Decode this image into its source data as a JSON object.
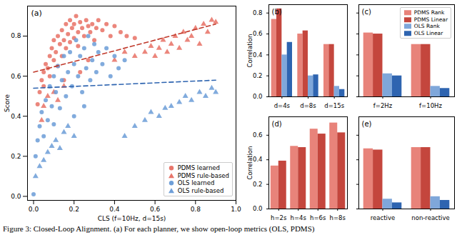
{
  "caption": "Figure 3: Closed-Loop Alignment. (a) For each planner, we show open-loop metrics (OLS, PDMS)",
  "chart_data": [
    {
      "type": "scatter",
      "title": "(a)",
      "x_label": "CLS (f=10Hz, d=15s)",
      "y_label": "Score",
      "xlim": [
        -0.03,
        1.0
      ],
      "ylim": [
        -0.02,
        0.95
      ],
      "xticks": [
        {
          "value": 0,
          "label": "0.0"
        },
        0.2,
        0.4,
        0.6,
        0.8,
        {
          "value": 1,
          "label": "1.0"
        }
      ],
      "yticks": [
        {
          "value": 0,
          "label": "0.0"
        },
        0.2,
        0.4,
        0.6,
        0.8
      ],
      "legend": "lower right",
      "series": [
        {
          "name": "PDMS learned",
          "color": "#e8756a",
          "marker": "circle",
          "x": [
            0.02,
            0.03,
            0.04,
            0.05,
            0.05,
            0.06,
            0.07,
            0.08,
            0.08,
            0.09,
            0.1,
            0.1,
            0.11,
            0.12,
            0.12,
            0.13,
            0.14,
            0.14,
            0.15,
            0.16,
            0.16,
            0.17,
            0.18,
            0.18,
            0.19,
            0.2,
            0.2,
            0.21,
            0.22,
            0.22,
            0.23,
            0.24,
            0.25,
            0.26,
            0.27,
            0.28,
            0.29,
            0.3,
            0.31,
            0.32,
            0.34,
            0.36,
            0.38,
            0.4,
            0.43,
            0.46,
            0.5,
            0.27,
            0.15,
            0.23
          ],
          "values": [
            0.46,
            0.52,
            0.58,
            0.62,
            0.55,
            0.66,
            0.64,
            0.7,
            0.6,
            0.74,
            0.68,
            0.78,
            0.72,
            0.8,
            0.65,
            0.76,
            0.83,
            0.7,
            0.78,
            0.86,
            0.74,
            0.81,
            0.88,
            0.77,
            0.84,
            0.79,
            0.86,
            0.9,
            0.82,
            0.75,
            0.87,
            0.84,
            0.8,
            0.88,
            0.85,
            0.82,
            0.86,
            0.78,
            0.84,
            0.88,
            0.83,
            0.86,
            0.8,
            0.85,
            0.82,
            0.8,
            0.79,
            0.68,
            0.58,
            0.62
          ]
        },
        {
          "name": "PDMS rule-based",
          "color": "#e8756a",
          "marker": "triangle",
          "x": [
            0.04,
            0.05,
            0.07,
            0.1,
            0.12,
            0.15,
            0.4,
            0.45,
            0.5,
            0.55,
            0.58,
            0.6,
            0.62,
            0.64,
            0.66,
            0.68,
            0.7,
            0.72,
            0.74,
            0.76,
            0.78,
            0.8,
            0.82,
            0.84,
            0.86,
            0.88,
            0.9
          ],
          "values": [
            0.38,
            0.45,
            0.5,
            0.52,
            0.48,
            0.55,
            0.68,
            0.72,
            0.7,
            0.72,
            0.75,
            0.7,
            0.74,
            0.78,
            0.72,
            0.76,
            0.8,
            0.74,
            0.82,
            0.78,
            0.8,
            0.84,
            0.76,
            0.86,
            0.82,
            0.88,
            0.87
          ]
        },
        {
          "name": "OLS learned",
          "color": "#6f9fd8",
          "marker": "circle",
          "x": [
            0.0,
            0.01,
            0.02,
            0.03,
            0.04,
            0.05,
            0.06,
            0.07,
            0.08,
            0.09,
            0.1,
            0.1,
            0.11,
            0.12,
            0.13,
            0.14,
            0.15,
            0.16,
            0.17,
            0.18,
            0.19,
            0.2,
            0.21,
            0.22,
            0.23,
            0.24,
            0.25,
            0.26,
            0.27,
            0.28,
            0.29,
            0.3,
            0.31,
            0.32,
            0.34,
            0.36,
            0.38,
            0.4,
            0.42,
            0.45,
            0.2,
            0.25
          ],
          "values": [
            0.01,
            0.2,
            0.28,
            0.35,
            0.42,
            0.3,
            0.48,
            0.38,
            0.55,
            0.45,
            0.6,
            0.36,
            0.52,
            0.65,
            0.44,
            0.58,
            0.7,
            0.5,
            0.62,
            0.72,
            0.55,
            0.66,
            0.78,
            0.6,
            0.7,
            0.52,
            0.74,
            0.64,
            0.8,
            0.58,
            0.68,
            0.76,
            0.62,
            0.72,
            0.66,
            0.74,
            0.6,
            0.7,
            0.64,
            0.68,
            0.4,
            0.45
          ]
        },
        {
          "name": "OLS rule-based",
          "color": "#6f9fd8",
          "marker": "triangle",
          "x": [
            0.01,
            0.03,
            0.05,
            0.07,
            0.09,
            0.11,
            0.13,
            0.15,
            0.17,
            0.2,
            0.45,
            0.5,
            0.55,
            0.58,
            0.62,
            0.65,
            0.68,
            0.72,
            0.75,
            0.78,
            0.82,
            0.85,
            0.88,
            0.9
          ],
          "values": [
            0.1,
            0.15,
            0.18,
            0.22,
            0.25,
            0.28,
            0.24,
            0.32,
            0.35,
            0.3,
            0.3,
            0.35,
            0.38,
            0.42,
            0.4,
            0.44,
            0.45,
            0.47,
            0.5,
            0.48,
            0.52,
            0.5,
            0.54,
            0.52
          ]
        },
        {
          "type": "line",
          "color": "#c0392b",
          "line_style": "dashed",
          "x": [
            0,
            0.9
          ],
          "values": [
            0.62,
            0.86
          ]
        },
        {
          "type": "line",
          "color": "#2e64b0",
          "line_style": "dashed",
          "x": [
            0,
            0.9
          ],
          "values": [
            0.54,
            0.58
          ]
        }
      ]
    },
    {
      "type": "bar",
      "title": "(b)",
      "y_label": "Correlation",
      "categories": [
        "d=4s",
        "d=8s",
        "d=15s"
      ],
      "ylim": [
        0,
        0.88
      ],
      "yticks": [
        {
          "value": 0,
          "label": "0.0"
        },
        0.2,
        0.4,
        0.6,
        0.8
      ],
      "series": [
        {
          "name": "PDMS Rank",
          "color": "#e8837a",
          "values": [
            0.74,
            0.6,
            0.5
          ]
        },
        {
          "name": "PDMS Linear",
          "color": "#c4463d",
          "values": [
            0.84,
            0.63,
            0.5
          ]
        },
        {
          "name": "OLS Rank",
          "color": "#7fa7da",
          "values": [
            0.4,
            0.2,
            0.1
          ]
        },
        {
          "name": "OLS Linear",
          "color": "#2e64b0",
          "values": [
            0.52,
            0.21,
            0.07
          ]
        }
      ]
    },
    {
      "type": "bar",
      "title": "(c)",
      "tick_labels": "x",
      "legend": "upper right",
      "categories": [
        "f=2Hz",
        "f=10Hz"
      ],
      "ylim": [
        0,
        0.88
      ],
      "yticks": [
        {
          "value": 0,
          "label": "0.0"
        },
        0.2,
        0.4,
        0.6,
        0.8
      ],
      "series": [
        {
          "name": "PDMS Rank",
          "color": "#e8837a",
          "values": [
            0.61,
            0.5
          ]
        },
        {
          "name": "PDMS Linear",
          "color": "#c4463d",
          "values": [
            0.6,
            0.5
          ]
        },
        {
          "name": "OLS Rank",
          "color": "#7fa7da",
          "values": [
            0.22,
            0.1
          ]
        },
        {
          "name": "OLS Linear",
          "color": "#2e64b0",
          "values": [
            0.2,
            0.08
          ]
        }
      ]
    },
    {
      "type": "bar",
      "title": "(d)",
      "y_label": "Correlation",
      "categories": [
        "h=2s",
        "h=4s",
        "h=6s",
        "h=8s"
      ],
      "ylim": [
        0,
        0.75
      ],
      "yticks": [
        {
          "value": 0,
          "label": "0.0"
        },
        0.2,
        0.4,
        0.6
      ],
      "series": [
        {
          "name": "PDMS Rank",
          "color": "#e8837a",
          "values": [
            0.35,
            0.51,
            0.65,
            0.7
          ]
        },
        {
          "name": "PDMS Linear",
          "color": "#c4463d",
          "values": [
            0.39,
            0.5,
            0.61,
            0.62
          ]
        }
      ]
    },
    {
      "type": "bar",
      "title": "(e)",
      "tick_labels": "x",
      "categories": [
        "reactive",
        "non-reactive"
      ],
      "ylim": [
        0,
        0.75
      ],
      "yticks": [
        {
          "value": 0,
          "label": "0.0"
        },
        0.2,
        0.4,
        0.6
      ],
      "series": [
        {
          "name": "PDMS Rank",
          "color": "#e8837a",
          "values": [
            0.49,
            0.5
          ]
        },
        {
          "name": "PDMS Linear",
          "color": "#c4463d",
          "values": [
            0.48,
            0.5
          ]
        },
        {
          "name": "OLS Rank",
          "color": "#7fa7da",
          "values": [
            0.08,
            0.1
          ]
        },
        {
          "name": "OLS Linear",
          "color": "#2e64b0",
          "values": [
            0.05,
            0.07
          ]
        }
      ]
    }
  ]
}
